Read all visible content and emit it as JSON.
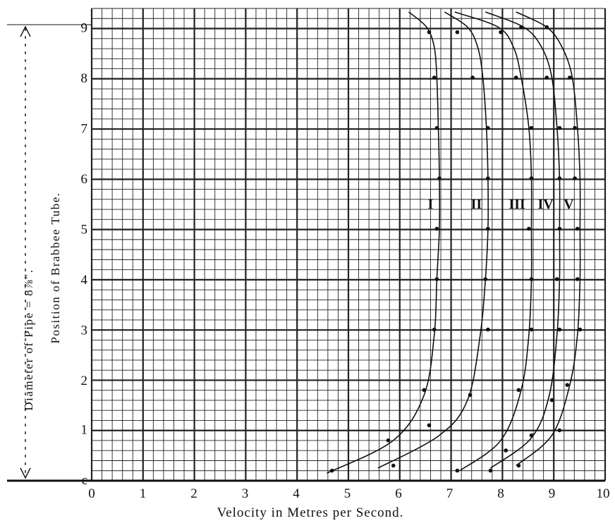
{
  "chart_data": {
    "type": "line",
    "title": "",
    "xlabel": "Velocity in Metres per Second.",
    "ylabel": "Position of Brabbee Tube.",
    "side_label": "Diameter of Pipe = 8⅞″.",
    "xlim": [
      0,
      10
    ],
    "ylim": [
      0,
      9.3
    ],
    "x_ticks": [
      "0",
      "1",
      "2",
      "3",
      "4",
      "5",
      "6",
      "7",
      "8",
      "9",
      "10"
    ],
    "y_ticks": [
      "c",
      "1",
      "2",
      "3",
      "4",
      "5",
      "6",
      "7",
      "8",
      "9"
    ],
    "grid": true,
    "series": [
      {
        "name": "I",
        "x": [
          4.6,
          5.9,
          6.5,
          6.7,
          6.75,
          6.8,
          6.8,
          6.78,
          6.75,
          6.7,
          6.55,
          6.2
        ],
        "y": [
          0.15,
          0.8,
          1.7,
          2.9,
          4.0,
          5.0,
          6.0,
          7.0,
          8.0,
          8.6,
          9.0,
          9.3
        ]
      },
      {
        "name": "II",
        "x": [
          5.6,
          6.8,
          7.35,
          7.6,
          7.7,
          7.75,
          7.75,
          7.72,
          7.65,
          7.55,
          7.35,
          6.9
        ],
        "y": [
          0.25,
          0.9,
          1.6,
          2.9,
          4.0,
          5.0,
          6.0,
          7.0,
          8.0,
          8.6,
          9.0,
          9.3
        ]
      },
      {
        "name": "III",
        "x": [
          7.2,
          8.0,
          8.4,
          8.55,
          8.6,
          8.6,
          8.6,
          8.55,
          8.4,
          8.25,
          7.95,
          7.1
        ],
        "y": [
          0.2,
          0.8,
          1.8,
          2.9,
          4.0,
          5.0,
          6.0,
          7.0,
          8.0,
          8.6,
          9.0,
          9.3
        ]
      },
      {
        "name": "IV",
        "x": [
          7.8,
          8.6,
          8.95,
          9.1,
          9.15,
          9.15,
          9.15,
          9.1,
          9.0,
          8.8,
          8.45,
          7.7
        ],
        "y": [
          0.25,
          0.85,
          1.7,
          2.9,
          4.0,
          5.0,
          6.0,
          7.0,
          8.0,
          8.6,
          9.0,
          9.3
        ]
      },
      {
        "name": "V",
        "x": [
          8.3,
          9.0,
          9.35,
          9.5,
          9.55,
          9.55,
          9.55,
          9.5,
          9.4,
          9.2,
          8.9,
          8.3
        ],
        "y": [
          0.3,
          0.9,
          1.9,
          2.9,
          4.0,
          5.0,
          6.0,
          7.0,
          8.0,
          8.6,
          9.0,
          9.3
        ]
      }
    ],
    "points": [
      {
        "series": "I",
        "x": [
          4.7,
          5.8,
          6.5,
          6.7,
          6.75,
          6.75,
          6.8,
          6.75,
          6.7,
          6.6
        ],
        "y": [
          0.2,
          0.8,
          1.8,
          3.0,
          4.0,
          5.0,
          6.0,
          7.0,
          8.0,
          8.9
        ]
      },
      {
        "series": "II",
        "x": [
          5.9,
          6.6,
          7.4,
          7.75,
          7.7,
          7.75,
          7.75,
          7.75,
          7.45,
          7.15
        ],
        "y": [
          0.3,
          1.1,
          1.7,
          3.0,
          4.0,
          5.0,
          6.0,
          7.0,
          8.0,
          8.9
        ]
      },
      {
        "series": "III",
        "x": [
          7.15,
          8.1,
          8.35,
          8.6,
          8.6,
          8.55,
          8.6,
          8.6,
          8.3,
          8.0
        ],
        "y": [
          0.2,
          0.6,
          1.8,
          3.0,
          4.0,
          5.0,
          6.0,
          7.0,
          8.0,
          8.9
        ]
      },
      {
        "series": "IV",
        "x": [
          7.8,
          8.6,
          9.0,
          9.15,
          9.1,
          9.15,
          9.15,
          9.15,
          8.9,
          8.4
        ],
        "y": [
          0.2,
          0.9,
          1.6,
          3.0,
          4.0,
          5.0,
          6.0,
          7.0,
          8.0,
          9.0
        ]
      },
      {
        "series": "V",
        "x": [
          8.35,
          9.15,
          9.3,
          9.55,
          9.5,
          9.5,
          9.45,
          9.45,
          9.35,
          8.9
        ],
        "y": [
          0.3,
          1.0,
          1.9,
          3.0,
          4.0,
          5.0,
          6.0,
          7.0,
          8.0,
          9.0
        ]
      }
    ],
    "series_labels_y": 5.5
  }
}
